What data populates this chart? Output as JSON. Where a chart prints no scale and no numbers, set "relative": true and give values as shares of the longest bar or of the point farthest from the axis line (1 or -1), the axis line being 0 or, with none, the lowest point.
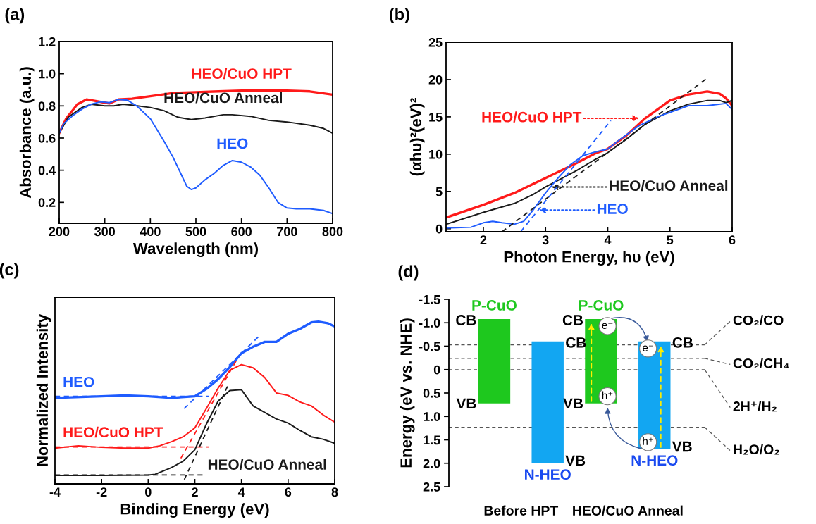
{
  "chart_data": [
    {
      "type": "line",
      "title": "(a)",
      "xlabel": "Wavelength (nm)",
      "ylabel": "Absorbance (a.u.)",
      "xlim": [
        200,
        800
      ],
      "xticks": [
        200,
        300,
        400,
        500,
        600,
        700,
        800
      ],
      "ylim": [
        0.07,
        1.2
      ],
      "yticks": [
        0.2,
        0.4,
        0.6,
        0.8,
        {
          "value": 1.0,
          "label": "1.0"
        },
        1.2
      ],
      "grid": false,
      "legend": false,
      "series": [
        {
          "color": "#ff1a1a",
          "x": [
            200,
            215,
            240,
            260,
            280,
            300,
            310,
            330,
            360,
            400,
            450,
            500,
            550,
            600,
            650,
            700,
            750,
            800
          ],
          "values": [
            0.63,
            0.72,
            0.81,
            0.84,
            0.83,
            0.82,
            0.815,
            0.84,
            0.845,
            0.86,
            0.88,
            0.885,
            0.89,
            0.895,
            0.895,
            0.895,
            0.89,
            0.87
          ]
        },
        {
          "color": "#1a1a1a",
          "x": [
            200,
            220,
            250,
            270,
            300,
            320,
            340,
            360,
            400,
            430,
            460,
            490,
            520,
            560,
            580,
            620,
            660,
            700,
            750,
            780,
            800
          ],
          "values": [
            0.63,
            0.73,
            0.79,
            0.81,
            0.8,
            0.8,
            0.81,
            0.805,
            0.79,
            0.77,
            0.73,
            0.715,
            0.725,
            0.745,
            0.745,
            0.735,
            0.71,
            0.7,
            0.68,
            0.66,
            0.63
          ]
        },
        {
          "color": "#1f5cff",
          "x": [
            200,
            210,
            230,
            250,
            270,
            290,
            310,
            330,
            350,
            370,
            400,
            430,
            450,
            470,
            480,
            490,
            500,
            520,
            540,
            560,
            580,
            600,
            620,
            640,
            660,
            680,
            700,
            720,
            750,
            780,
            800
          ],
          "values": [
            0.63,
            0.69,
            0.74,
            0.78,
            0.81,
            0.825,
            0.82,
            0.84,
            0.835,
            0.8,
            0.72,
            0.58,
            0.48,
            0.36,
            0.3,
            0.28,
            0.29,
            0.34,
            0.38,
            0.43,
            0.46,
            0.45,
            0.42,
            0.37,
            0.29,
            0.2,
            0.165,
            0.16,
            0.16,
            0.15,
            0.13
          ]
        }
      ],
      "annotations": [
        "HEO/CuO HPT",
        "HEO/CuO Anneal",
        "HEO"
      ]
    },
    {
      "type": "line",
      "title": "(b)",
      "xlabel": "Photon Energy, hυ (eV)",
      "ylabel": "(αhυ)²(eV)²",
      "xlim": [
        1.4,
        6
      ],
      "xticks": [
        2,
        3,
        4,
        5,
        6
      ],
      "ylim": [
        -0.4,
        25
      ],
      "yticks": [
        0,
        5,
        10,
        15,
        20,
        25
      ],
      "grid": false,
      "legend": false,
      "series": [
        {
          "color": "#ff1a1a",
          "x": [
            1.4,
            2,
            2.5,
            3,
            3.5,
            3.8,
            4,
            4.3,
            4.6,
            5,
            5.3,
            5.6,
            5.8,
            5.9,
            6
          ],
          "values": [
            1.5,
            3.2,
            4.8,
            6.8,
            8.8,
            10.1,
            10.7,
            12.5,
            14.8,
            17.2,
            18.0,
            18.4,
            18.1,
            17.5,
            16.5
          ]
        },
        {
          "color": "#1a1a1a",
          "x": [
            1.4,
            2,
            2.5,
            2.8,
            3,
            3.5,
            3.8,
            4,
            4.3,
            4.6,
            5,
            5.3,
            5.6,
            5.8,
            5.9,
            6
          ],
          "values": [
            0.6,
            2.2,
            3.4,
            4.6,
            5.6,
            7.8,
            9.3,
            10.2,
            12.0,
            14.0,
            15.8,
            16.7,
            17.2,
            17.2,
            16.9,
            17.2
          ]
        },
        {
          "color": "#1f5cff",
          "x": [
            1.4,
            1.8,
            2,
            2.15,
            2.3,
            2.5,
            2.65,
            2.8,
            3,
            3.2,
            3.4,
            3.6,
            3.8,
            4,
            4.2,
            4.5,
            4.8,
            5,
            5.3,
            5.6,
            5.9,
            6
          ],
          "values": [
            0.1,
            0.2,
            0.8,
            1.0,
            0.8,
            0.6,
            1.0,
            2.5,
            4.8,
            6.8,
            8.6,
            9.8,
            10.3,
            10.7,
            12.0,
            13.8,
            15.0,
            15.6,
            16.5,
            16.5,
            16.8,
            16.0
          ]
        },
        {
          "color": "#1a1a1a",
          "line_style": "dashed",
          "x": [
            2.3,
            5.6
          ],
          "values": [
            -0.4,
            20.2
          ]
        },
        {
          "color": "#1f5cff",
          "line_style": "dashed",
          "x": [
            2.6,
            4.05
          ],
          "values": [
            -0.4,
            14.5
          ]
        }
      ],
      "annotations": [
        "HEO/CuO HPT",
        "HEO/CuO Anneal",
        "HEO"
      ]
    },
    {
      "type": "line",
      "title": "(c)",
      "xlabel": "Binding Energy (eV)",
      "ylabel": "Normalized Intensity",
      "relative": true,
      "xlim": [
        -4,
        8
      ],
      "xticks": [
        -4,
        -2,
        0,
        2,
        4,
        6,
        8
      ],
      "grid": false,
      "legend": false,
      "series": [
        {
          "color": "#1f5cff",
          "x": [
            -4,
            -2,
            -1,
            0,
            1,
            2,
            2.5,
            3,
            3.5,
            4,
            4.5,
            5,
            5.5,
            6,
            6.5,
            7,
            7.3,
            7.7,
            8
          ],
          "values": [
            0.53,
            0.54,
            0.545,
            0.54,
            0.53,
            0.54,
            0.585,
            0.645,
            0.72,
            0.805,
            0.845,
            0.875,
            0.875,
            0.925,
            0.955,
            0.995,
            1.0,
            0.99,
            0.97
          ]
        },
        {
          "color": "#ff1a1a",
          "x": [
            -4,
            -3,
            -2,
            -1,
            0,
            0.5,
            1,
            1.5,
            2,
            2.5,
            3,
            3.5,
            4,
            4.5,
            5,
            5.5,
            6,
            6.5,
            7,
            7.5,
            8
          ],
          "values": [
            0.22,
            0.235,
            0.225,
            0.22,
            0.22,
            0.235,
            0.26,
            0.29,
            0.345,
            0.465,
            0.59,
            0.7,
            0.735,
            0.715,
            0.655,
            0.56,
            0.545,
            0.505,
            0.48,
            0.425,
            0.38
          ]
        },
        {
          "color": "#1a1a1a",
          "x": [
            -4,
            -2,
            0,
            0.3,
            1,
            1.5,
            2,
            2.5,
            3,
            3.5,
            4,
            4.5,
            5,
            5.5,
            6,
            6.5,
            7,
            7.5,
            8
          ],
          "values": [
            0.052,
            0.052,
            0.054,
            0.059,
            0.1,
            0.14,
            0.21,
            0.37,
            0.51,
            0.575,
            0.58,
            0.48,
            0.44,
            0.4,
            0.375,
            0.33,
            0.29,
            0.275,
            0.25
          ]
        },
        {
          "color": "#1f5cff",
          "line_style": "dashed",
          "x": [
            -4,
            2.6
          ],
          "values": [
            0.54,
            0.54
          ]
        },
        {
          "color": "#1f5cff",
          "line_style": "dashed",
          "x": [
            1.54,
            4.72
          ],
          "values": [
            0.464,
            0.905
          ]
        },
        {
          "color": "#ff1a1a",
          "line_style": "dashed",
          "x": [
            -4,
            2.6
          ],
          "values": [
            0.227,
            0.227
          ]
        },
        {
          "color": "#ff1a1a",
          "line_style": "dashed",
          "x": [
            1.4,
            3.8
          ],
          "values": [
            0.158,
            0.765
          ]
        },
        {
          "color": "#1a1a1a",
          "line_style": "dashed",
          "x": [
            -4,
            2.4
          ],
          "values": [
            0.055,
            0.055
          ]
        },
        {
          "color": "#1a1a1a",
          "line_style": "dashed",
          "x": [
            1.55,
            3.4
          ],
          "values": [
            0.027,
            0.6
          ]
        }
      ],
      "annotations": [
        "HEO",
        "HEO/CuO HPT",
        "HEO/CuO Anneal"
      ]
    },
    {
      "type": "bar",
      "title": "(d)",
      "ylabel": "Energy (eV vs. NHE)",
      "categories": [
        null,
        null,
        null,
        null
      ],
      "base": [
        -1.08,
        -0.6,
        -1.08,
        -0.6
      ],
      "values": [
        1.8,
        2.6,
        1.8,
        2.3
      ],
      "colors": [
        "#1ec81e",
        "#12a6f2",
        "#1ec81e",
        "#12a6f2"
      ],
      "ylim": [
        2.5,
        -1.5
      ],
      "yticks": [
        {
          "value": -1.5,
          "label": "-1.5"
        },
        {
          "value": -1.0,
          "label": "-1.0"
        },
        {
          "value": -0.5,
          "label": "-0.5"
        },
        0,
        {
          "value": 0.5,
          "label": "0.5"
        },
        {
          "value": 1.0,
          "label": "1.0"
        },
        {
          "value": 1.5,
          "label": "1.5"
        },
        {
          "value": 2.0,
          "label": "2.0"
        },
        {
          "value": 2.5,
          "label": "2.5"
        }
      ],
      "tick_labels": "y",
      "grid": false,
      "legend": false,
      "ref_lines": [
        {
          "axis": "y",
          "value": -0.53,
          "label": "CO₂/CO",
          "color": "#555555",
          "line_style": "dashed"
        },
        {
          "axis": "y",
          "value": -0.24,
          "label": "CO₂/CH₄",
          "color": "#555555",
          "line_style": "dashed"
        },
        {
          "axis": "y",
          "value": 0,
          "label": "2H⁺/H₂",
          "color": "#555555",
          "line_style": "dashed"
        },
        {
          "axis": "y",
          "value": 1.23,
          "label": "H₂O/O₂",
          "color": "#555555",
          "line_style": "dashed"
        }
      ],
      "annotations": [
        "P-CuO",
        "N-HEO",
        "P-CuO",
        "N-HEO",
        "CB",
        "CB",
        "CB",
        "CB",
        "VB",
        "VB",
        "VB",
        "VB",
        "Before HPT",
        "HEO/CuO Anneal",
        "e⁻",
        "e⁻",
        "h⁺",
        "h⁺"
      ]
    }
  ]
}
